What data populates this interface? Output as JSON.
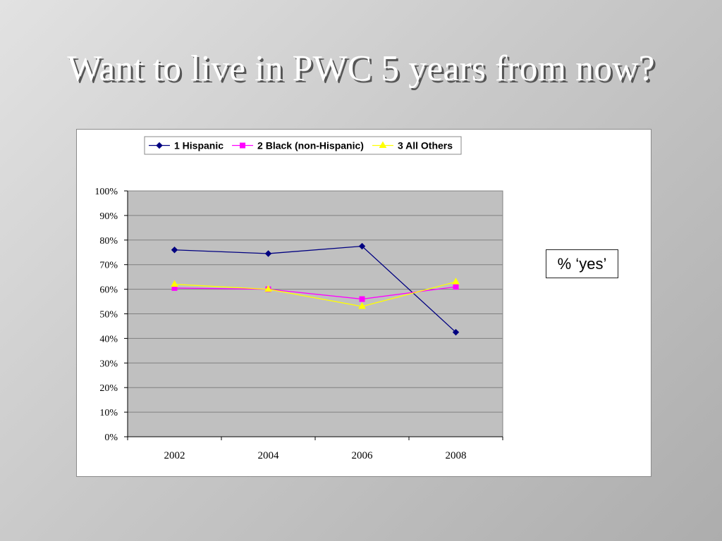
{
  "slide": {
    "title": "Want to live in PWC 5 years from now?",
    "annotation": "% ‘yes’"
  },
  "colors": {
    "hispanic": "#000080",
    "black": "#ff00ff",
    "others": "#ffff00",
    "plot_bg": "#c0c0c0",
    "grid": "#808080"
  },
  "chart_data": {
    "type": "line",
    "title": "",
    "xlabel": "",
    "ylabel": "",
    "categories": [
      "2002",
      "2004",
      "2006",
      "2008"
    ],
    "y_ticks": [
      "0%",
      "10%",
      "20%",
      "30%",
      "40%",
      "50%",
      "60%",
      "70%",
      "80%",
      "90%",
      "100%"
    ],
    "ylim": [
      0,
      100
    ],
    "grid": true,
    "legend_position": "top",
    "series": [
      {
        "name": "1  Hispanic",
        "marker": "diamond",
        "color": "#000080",
        "values": [
          76,
          74.5,
          77.5,
          42.5
        ]
      },
      {
        "name": "2  Black (non-Hispanic)",
        "marker": "square",
        "color": "#ff00ff",
        "values": [
          60.5,
          60,
          56,
          61
        ]
      },
      {
        "name": "3  All Others",
        "marker": "triangle",
        "color": "#ffff00",
        "values": [
          62,
          60,
          53,
          63
        ]
      }
    ]
  }
}
